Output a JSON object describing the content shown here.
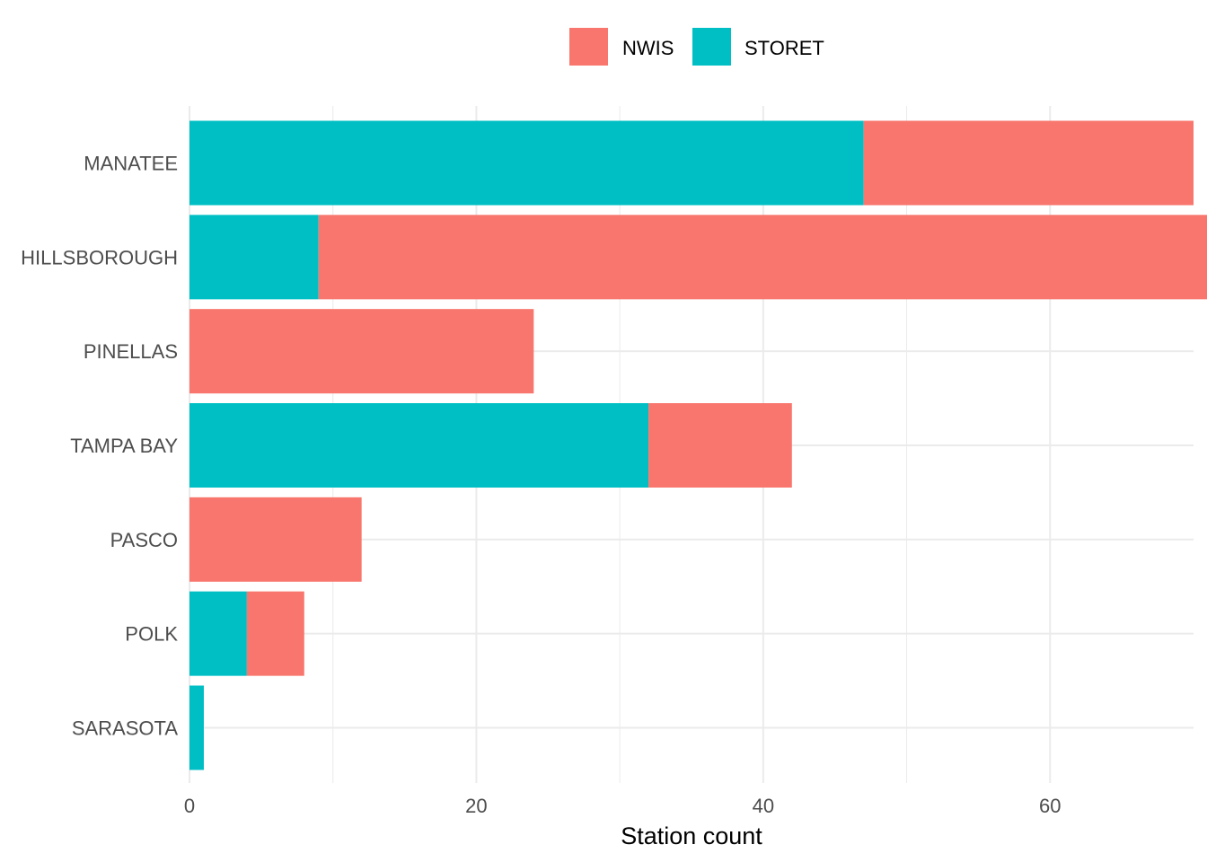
{
  "chart_data": {
    "type": "bar",
    "orientation": "horizontal",
    "stacked": true,
    "title": "",
    "xlabel": "Station count",
    "ylabel": "",
    "xlim": [
      0,
      70
    ],
    "x_ticks": [
      0,
      20,
      40,
      60
    ],
    "categories": [
      "MANATEE",
      "HILLSBOROUGH",
      "PINELLAS",
      "TAMPA BAY",
      "PASCO",
      "POLK",
      "SARASOTA"
    ],
    "series": [
      {
        "name": "NWIS",
        "color": "#F8766D",
        "values": [
          23,
          63,
          24,
          10,
          12,
          4,
          0
        ]
      },
      {
        "name": "STORET",
        "color": "#00BFC4",
        "values": [
          47,
          9,
          0,
          32,
          0,
          4,
          1
        ]
      }
    ],
    "legend_position": "top",
    "grid": true
  }
}
